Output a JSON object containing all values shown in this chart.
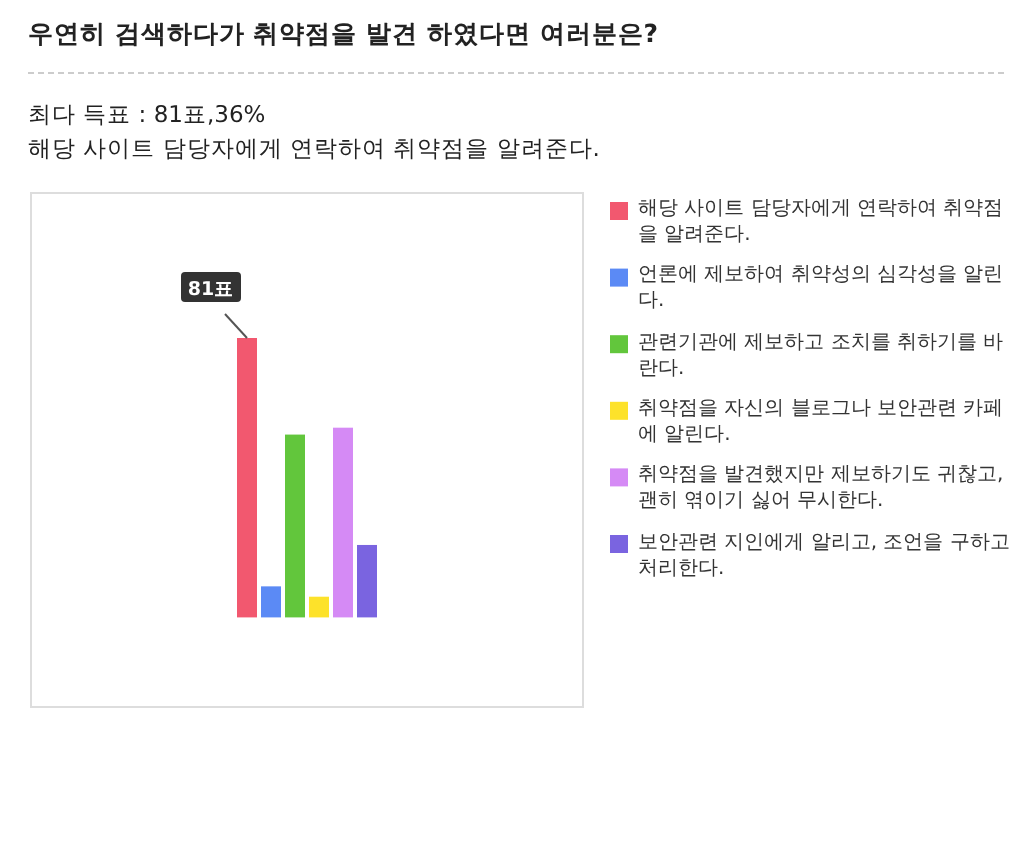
{
  "chart_data": {
    "type": "bar",
    "title": "우연히 검색하다가 취약점을 발견 하였다면 여러분은?",
    "annotations": [
      "최다 득표 : 81표,36%",
      "해당 사이트 담당자에게 연락하여 취약점을 알려준다."
    ],
    "categories": [
      null
    ],
    "series": [
      {
        "name": "해당 사이트 담당자에게 연락하여 취약점을 알려준다.",
        "color": "#f2586f",
        "values": [
          81
        ],
        "value_labels": [
          "81표"
        ]
      },
      {
        "name": "언론에 제보하여 취약성의 심각성을 알린다.",
        "color": "#5b8af5",
        "values": [
          9
        ]
      },
      {
        "name": "관련기관에 제보하고 조치를 취하기를 바란다.",
        "color": "#62c63c",
        "values": [
          53
        ]
      },
      {
        "name": "취약점을 자신의 블로그나 보안관련 카페에 알린다.",
        "color": "#fde22a",
        "values": [
          6
        ]
      },
      {
        "name": "취약점을 발견했지만 제보하기도 귀찮고, 괜히 엮이기 싫어 무시한다.",
        "color": "#d58af5",
        "values": [
          55
        ]
      },
      {
        "name": "보안관련 지인에게 알리고, 조언을 구하고 처리한다.",
        "color": "#7a64e0",
        "values": [
          21
        ]
      }
    ],
    "legend": "right"
  }
}
